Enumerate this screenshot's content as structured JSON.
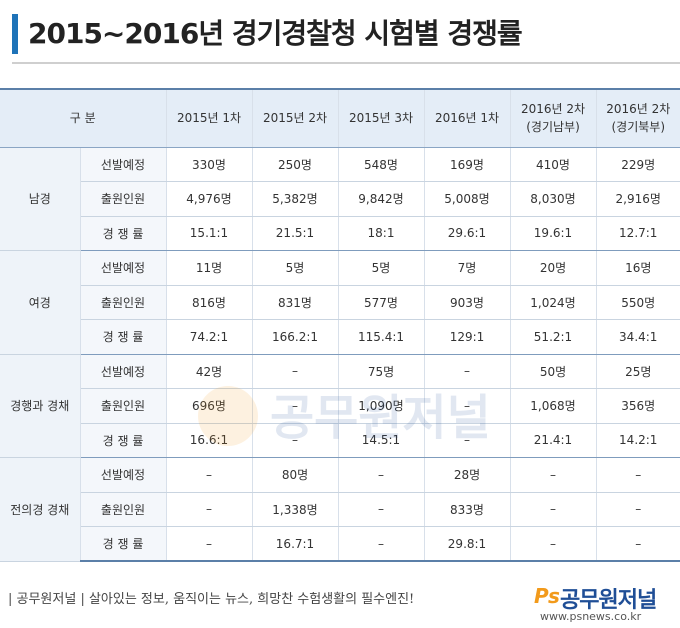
{
  "title": "2015~2016년 경기경찰청 시험별 경쟁률",
  "table": {
    "header": {
      "category": "구  분",
      "columns": [
        "2015년 1차",
        "2015년 2차",
        "2015년 3차",
        "2016년 1차",
        "2016년 2차\n(경기남부)",
        "2016년 2차\n(경기북부)"
      ]
    },
    "groups": [
      {
        "name": "남경",
        "rows": [
          {
            "label": "선발예정",
            "values": [
              "330명",
              "250명",
              "548명",
              "169명",
              "410명",
              "229명"
            ]
          },
          {
            "label": "출원인원",
            "values": [
              "4,976명",
              "5,382명",
              "9,842명",
              "5,008명",
              "8,030명",
              "2,916명"
            ]
          },
          {
            "label": "경 쟁 률",
            "values": [
              "15.1:1",
              "21.5:1",
              "18:1",
              "29.6:1",
              "19.6:1",
              "12.7:1"
            ]
          }
        ]
      },
      {
        "name": "여경",
        "rows": [
          {
            "label": "선발예정",
            "values": [
              "11명",
              "5명",
              "5명",
              "7명",
              "20명",
              "16명"
            ]
          },
          {
            "label": "출원인원",
            "values": [
              "816명",
              "831명",
              "577명",
              "903명",
              "1,024명",
              "550명"
            ]
          },
          {
            "label": "경 쟁 률",
            "values": [
              "74.2:1",
              "166.2:1",
              "115.4:1",
              "129:1",
              "51.2:1",
              "34.4:1"
            ]
          }
        ]
      },
      {
        "name": "경행과 경채",
        "rows": [
          {
            "label": "선발예정",
            "values": [
              "42명",
              "–",
              "75명",
              "–",
              "50명",
              "25명"
            ]
          },
          {
            "label": "출원인원",
            "values": [
              "696명",
              "–",
              "1,090명",
              "–",
              "1,068명",
              "356명"
            ]
          },
          {
            "label": "경 쟁 률",
            "values": [
              "16.6:1",
              "–",
              "14.5:1",
              "–",
              "21.4:1",
              "14.2:1"
            ]
          }
        ]
      },
      {
        "name": "전의경 경채",
        "rows": [
          {
            "label": "선발예정",
            "values": [
              "–",
              "80명",
              "–",
              "28명",
              "–",
              "–"
            ]
          },
          {
            "label": "출원인원",
            "values": [
              "–",
              "1,338명",
              "–",
              "833명",
              "–",
              "–"
            ]
          },
          {
            "label": "경 쟁 률",
            "values": [
              "–",
              "16.7:1",
              "–",
              "29.8:1",
              "–",
              "–"
            ]
          }
        ]
      }
    ]
  },
  "watermark": "공무원저널",
  "footer": {
    "text": "| 공무원저널 | 살아있는 정보, 움직이는 뉴스, 희망찬 수험생활의 필수엔진!",
    "logo_ps": "Ps",
    "logo_name": "공무원저널",
    "url": "www.psnews.co.kr"
  },
  "colors": {
    "accent": "#1e73b8",
    "header_bg": "#e4edf7",
    "logo_orange": "#f29a1b",
    "logo_blue": "#1f4e96"
  }
}
